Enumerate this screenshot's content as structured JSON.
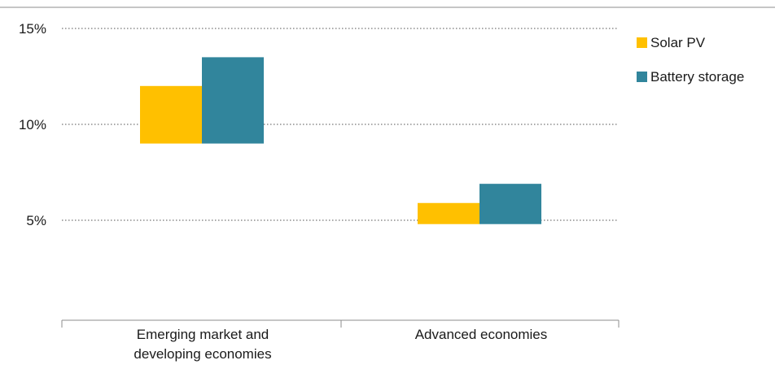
{
  "chart_data": {
    "type": "bar",
    "subtype": "floating-range",
    "categories": [
      [
        "Emerging market and",
        "developing economies"
      ],
      [
        "Advanced economies"
      ]
    ],
    "series": [
      {
        "name": "Solar PV",
        "color": "#FFC000",
        "ranges": [
          [
            9.0,
            12.0
          ],
          [
            4.8,
            5.9
          ]
        ]
      },
      {
        "name": "Battery storage",
        "color": "#31859C",
        "ranges": [
          [
            9.0,
            13.5
          ],
          [
            4.8,
            6.9
          ]
        ]
      }
    ],
    "yticks": [
      5,
      10,
      15
    ],
    "ytick_labels": [
      "5%",
      "10%",
      "15%"
    ],
    "ylim": [
      0,
      15.5
    ],
    "grid": "dotted-horizontal",
    "legend_position": "right",
    "title": "",
    "xlabel": "",
    "ylabel": ""
  }
}
